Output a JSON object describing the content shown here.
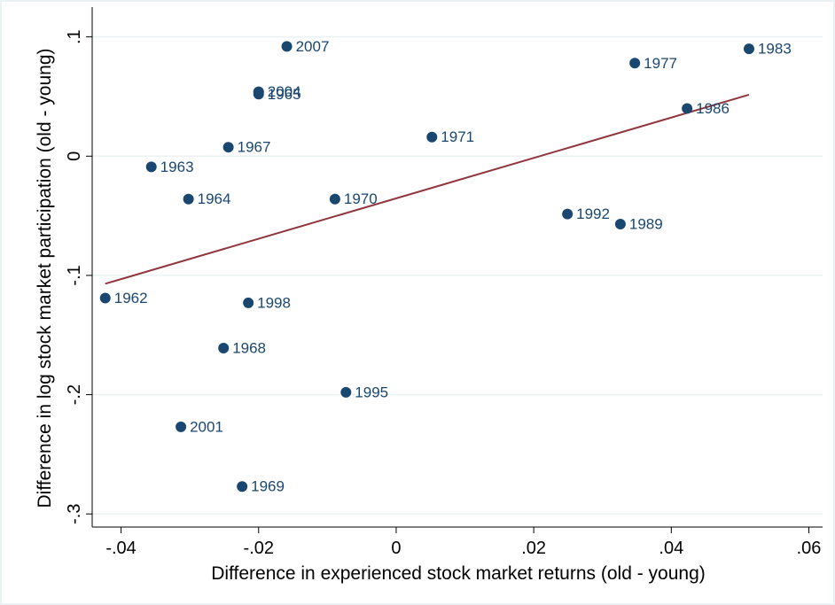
{
  "chart_data": {
    "type": "scatter",
    "x_label": "Difference in experienced stock market returns (old - young)",
    "y_label": "Difference in log stock market participation (old - young)",
    "xlim": [
      -0.0442,
      0.062
    ],
    "ylim": [
      -0.311,
      0.125
    ],
    "xticks": [
      {
        "value": -0.04,
        "label": "-.04"
      },
      {
        "value": -0.02,
        "label": "-.02"
      },
      0,
      {
        "value": 0.02,
        "label": ".02"
      },
      {
        "value": 0.04,
        "label": ".04"
      },
      {
        "value": 0.06,
        "label": ".06"
      }
    ],
    "yticks": [
      {
        "value": 0.1,
        "label": ".1"
      },
      0,
      {
        "value": -0.1,
        "label": "-.1"
      },
      {
        "value": -0.2,
        "label": "-.2"
      },
      {
        "value": -0.3,
        "label": "-.3"
      }
    ],
    "grid": true,
    "series": [
      {
        "color": "#1a476f",
        "x": [
          -0.0159,
          -0.02,
          -0.02,
          0.0347,
          0.0513,
          0.0423,
          0.0052,
          -0.0244,
          -0.0356,
          -0.0302,
          -0.0089,
          0.0249,
          0.0326,
          -0.0423,
          -0.0215,
          -0.0251,
          -0.0073,
          -0.0313,
          -0.0224
        ],
        "values": [
          0.092,
          0.054,
          0.052,
          0.078,
          0.09,
          0.04,
          0.016,
          0.0075,
          -0.009,
          -0.036,
          -0.036,
          -0.0485,
          -0.057,
          -0.119,
          -0.123,
          -0.161,
          -0.198,
          -0.227,
          -0.277
        ],
        "point_labels": [
          "2007",
          "2004",
          "1965",
          "1977",
          "1983",
          "1986",
          "1971",
          "1967",
          "1963",
          "1964",
          "1970",
          "1992",
          "1989",
          "1962",
          "1998",
          "1968",
          "1995",
          "2001",
          "1969"
        ]
      }
    ],
    "fit_line": {
      "color": "#90353b",
      "x": [
        -0.0423,
        0.0513
      ],
      "values": [
        -0.107,
        0.0515
      ]
    }
  }
}
